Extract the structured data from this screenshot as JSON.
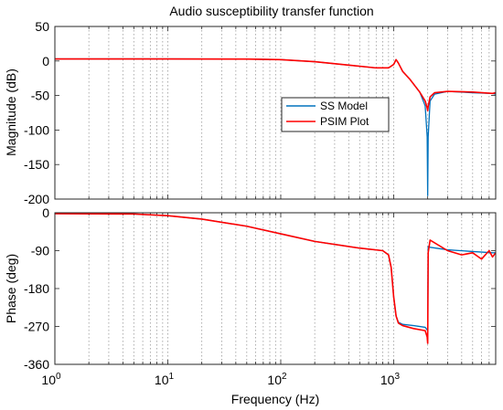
{
  "chart_data": {
    "title": "Audio susceptibility transfer function",
    "type": "line",
    "xscale": "log",
    "xlabel": "Frequency  (Hz)",
    "xlim": [
      1,
      8000
    ],
    "x_ticks": [
      1,
      10,
      100,
      1000
    ],
    "x_tick_labels": [
      {
        "base": "10",
        "exp": "0"
      },
      {
        "base": "10",
        "exp": "1"
      },
      {
        "base": "10",
        "exp": "2"
      },
      {
        "base": "10",
        "exp": "3"
      }
    ],
    "grid": "x-major-and-minor-dotted",
    "legend": {
      "location": "inside-right-middle of magnitude panel",
      "entries": [
        "SS Model",
        "PSIM Plot"
      ]
    },
    "colors": {
      "ss_model": "#0072BD",
      "psim_plot": "#FF0000"
    },
    "panels": [
      {
        "id": "magnitude",
        "ylabel": "Magnitude (dB)",
        "ylim": [
          -200,
          50
        ],
        "y_ticks": [
          50,
          0,
          -50,
          -100,
          -150,
          -200
        ],
        "series": [
          {
            "name": "SS Model",
            "x": [
              1,
              10,
              50,
              100,
              200,
              400,
              700,
              900,
              1000,
              1050,
              1100,
              1200,
              1400,
              1700,
              1900,
              1980,
              2000,
              2020,
              2100,
              2300,
              3000,
              5000,
              7500,
              8000
            ],
            "y": [
              3,
              3,
              2.8,
              2,
              -1,
              -6,
              -10,
              -10,
              -5,
              2,
              -3,
              -15,
              -27,
              -45,
              -65,
              -110,
              -195,
              -110,
              -58,
              -48,
              -44,
              -46,
              -47,
              -48
            ]
          },
          {
            "name": "PSIM Plot",
            "x": [
              1,
              10,
              50,
              100,
              200,
              400,
              700,
              900,
              1000,
              1050,
              1100,
              1200,
              1400,
              1700,
              1900,
              1980,
              2000,
              2020,
              2100,
              2300,
              3000,
              5000,
              7500,
              8000
            ],
            "y": [
              3,
              3,
              2.8,
              2,
              -1,
              -6,
              -10,
              -10,
              -5,
              2,
              -3,
              -15,
              -27,
              -45,
              -58,
              -68,
              -72,
              -66,
              -52,
              -46,
              -44,
              -45,
              -47,
              -46
            ]
          }
        ]
      },
      {
        "id": "phase",
        "ylabel": "Phase (deg)",
        "ylim": [
          -360,
          0
        ],
        "y_ticks": [
          0,
          -90,
          -180,
          -270,
          -360
        ],
        "series": [
          {
            "name": "SS Model",
            "x": [
              1,
              5,
              10,
              20,
              50,
              100,
              200,
              500,
              800,
              900,
              950,
              1000,
              1050,
              1100,
              1200,
              1500,
              1900,
              1980,
              2000,
              2020,
              2100,
              3000,
              5000,
              7500,
              8000
            ],
            "y": [
              -2,
              -3,
              -7,
              -15,
              -32,
              -50,
              -68,
              -84,
              -90,
              -100,
              -130,
              -200,
              -245,
              -260,
              -265,
              -268,
              -272,
              -278,
              -280,
              -80,
              -82,
              -88,
              -92,
              -95,
              -95
            ]
          },
          {
            "name": "PSIM Plot",
            "x": [
              1,
              5,
              10,
              20,
              50,
              100,
              200,
              500,
              800,
              900,
              950,
              1000,
              1050,
              1100,
              1200,
              1500,
              1900,
              1980,
              2000,
              2020,
              2100,
              3000,
              4000,
              5000,
              6000,
              7000,
              7500,
              8000
            ],
            "y": [
              -2,
              -3,
              -7,
              -15,
              -32,
              -50,
              -68,
              -84,
              -90,
              -100,
              -130,
              -200,
              -245,
              -262,
              -268,
              -275,
              -280,
              -295,
              -310,
              -95,
              -65,
              -90,
              -100,
              -95,
              -110,
              -90,
              -105,
              -95
            ]
          }
        ]
      }
    ]
  }
}
